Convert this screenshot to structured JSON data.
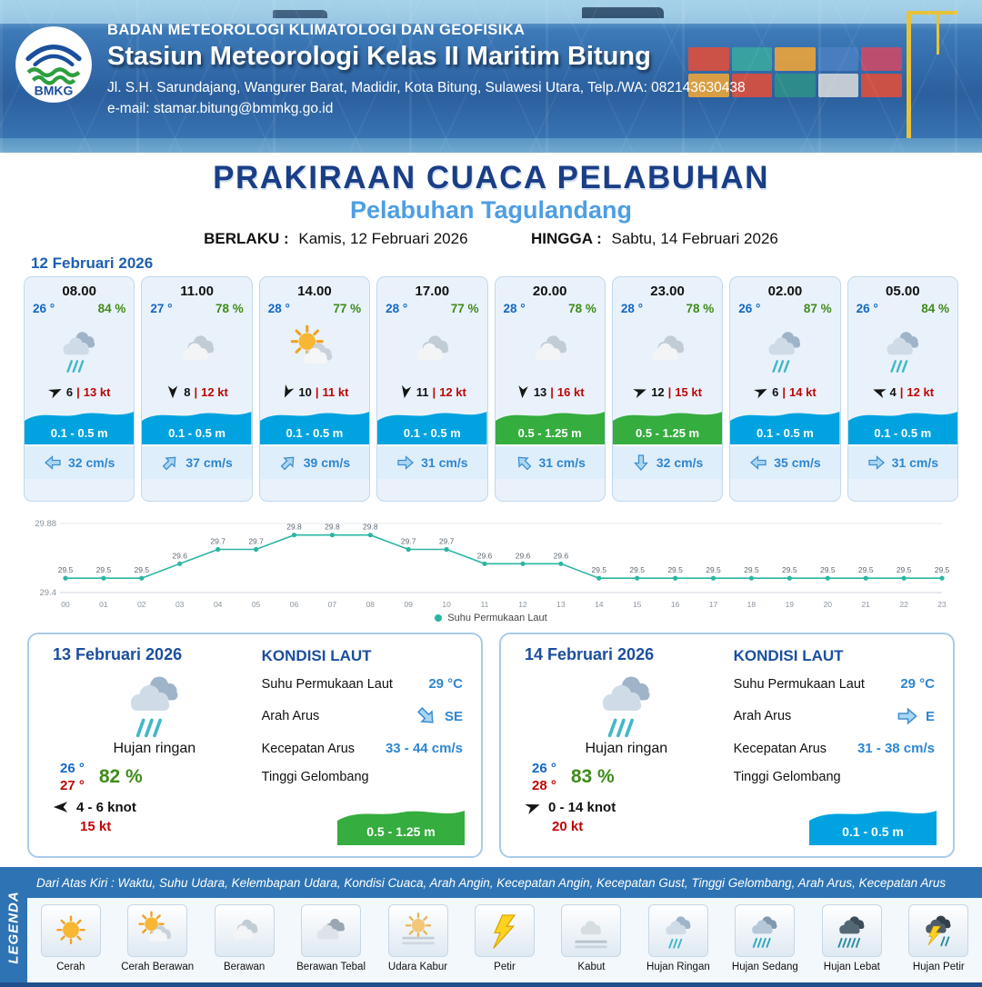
{
  "header": {
    "logo_text": "BMKG",
    "org": "BADAN METEOROLOGI KLIMATOLOGI DAN GEOFISIKA",
    "station": "Stasiun Meteorologi Kelas II Maritim Bitung",
    "address": "Jl. S.H. Sarundajang, Wangurer Barat, Madidir, Kota Bitung, Sulawesi Utara, Telp./WA: 082143630438",
    "email": "e-mail: stamar.bitung@bmmkg.go.id"
  },
  "title": {
    "main": "PRAKIRAAN CUACA PELABUHAN",
    "sub": "Pelabuhan Tagulandang",
    "berlaku_label": "BERLAKU :",
    "berlaku_value": "Kamis, 12 Februari 2026",
    "hingga_label": "HINGGA :",
    "hingga_value": "Sabtu, 14 Februari 2026"
  },
  "forecast_date": "12 Februari 2026",
  "hourly": [
    {
      "time": "08.00",
      "temp": "26 °",
      "humidity": "84 %",
      "weather": "hujan-ringan",
      "wind_deg": -25,
      "wind_speed": "6",
      "gust": "13 kt",
      "wave": "0.1 - 0.5 m",
      "wave_color": "#00a3e0",
      "current_deg": 180,
      "current": "32 cm/s"
    },
    {
      "time": "11.00",
      "temp": "27 °",
      "humidity": "78 %",
      "weather": "berawan",
      "wind_deg": 90,
      "wind_speed": "8",
      "gust": "12 kt",
      "wave": "0.1 - 0.5 m",
      "wave_color": "#00a3e0",
      "current_deg": -45,
      "current": "37 cm/s"
    },
    {
      "time": "14.00",
      "temp": "28 °",
      "humidity": "77 %",
      "weather": "cerah-berawan",
      "wind_deg": 115,
      "wind_speed": "10",
      "gust": "11 kt",
      "wave": "0.1 - 0.5 m",
      "wave_color": "#00a3e0",
      "current_deg": -45,
      "current": "39 cm/s"
    },
    {
      "time": "17.00",
      "temp": "28 °",
      "humidity": "77 %",
      "weather": "berawan",
      "wind_deg": 100,
      "wind_speed": "11",
      "gust": "12 kt",
      "wave": "0.1 - 0.5 m",
      "wave_color": "#00a3e0",
      "current_deg": 0,
      "current": "31 cm/s"
    },
    {
      "time": "20.00",
      "temp": "28 °",
      "humidity": "78 %",
      "weather": "berawan",
      "wind_deg": 95,
      "wind_speed": "13",
      "gust": "16 kt",
      "wave": "0.5 - 1.25 m",
      "wave_color": "#35ad3f",
      "current_deg": -135,
      "current": "31 cm/s"
    },
    {
      "time": "23.00",
      "temp": "28 °",
      "humidity": "78 %",
      "weather": "berawan",
      "wind_deg": -20,
      "wind_speed": "12",
      "gust": "15 kt",
      "wave": "0.5 - 1.25 m",
      "wave_color": "#35ad3f",
      "current_deg": 90,
      "current": "32 cm/s"
    },
    {
      "time": "02.00",
      "temp": "26 °",
      "humidity": "87 %",
      "weather": "hujan-ringan",
      "wind_deg": -25,
      "wind_speed": "6",
      "gust": "14 kt",
      "wave": "0.1 - 0.5 m",
      "wave_color": "#00a3e0",
      "current_deg": 180,
      "current": "35 cm/s"
    },
    {
      "time": "05.00",
      "temp": "26 °",
      "humidity": "84 %",
      "weather": "hujan-ringan",
      "wind_deg": 200,
      "wind_speed": "4",
      "gust": "12 kt",
      "wave": "0.1 - 0.5 m",
      "wave_color": "#00a3e0",
      "current_deg": 0,
      "current": "31 cm/s"
    }
  ],
  "chart_data": {
    "type": "line",
    "series_name": "Suhu Permukaan Laut",
    "x": [
      "00",
      "01",
      "02",
      "03",
      "04",
      "05",
      "06",
      "07",
      "08",
      "09",
      "10",
      "11",
      "12",
      "13",
      "14",
      "15",
      "16",
      "17",
      "18",
      "19",
      "20",
      "21",
      "22",
      "23"
    ],
    "values": [
      29.5,
      29.5,
      29.5,
      29.6,
      29.7,
      29.7,
      29.8,
      29.8,
      29.8,
      29.7,
      29.7,
      29.6,
      29.6,
      29.6,
      29.5,
      29.5,
      29.5,
      29.5,
      29.5,
      29.5,
      29.5,
      29.5,
      29.5,
      29.5
    ],
    "ylim": [
      29.4,
      29.88
    ],
    "y_tick_labels": [
      "29.88",
      "29.4"
    ],
    "line_color": "#2bb5a3",
    "grid": true,
    "legend_position": "bottom"
  },
  "daily": [
    {
      "date": "13 Februari 2026",
      "weather": "hujan-ringan",
      "condition": "Hujan ringan",
      "temp_min": "26 °",
      "temp_max": "27 °",
      "humidity": "82 %",
      "wind_deg": 180,
      "wind_range": "4 - 6 knot",
      "gust": "15 kt",
      "sea": {
        "title": "KONDISI LAUT",
        "sst_label": "Suhu Permukaan Laut",
        "sst": "29 °C",
        "dir_label": "Arah Arus",
        "dir": "SE",
        "dir_deg": 45,
        "speed_label": "Kecepatan Arus",
        "speed": "33 - 44 cm/s",
        "wave_label": "Tinggi Gelombang",
        "wave": "0.5 - 1.25 m",
        "wave_color": "#35ad3f"
      }
    },
    {
      "date": "14 Februari 2026",
      "weather": "hujan-ringan",
      "condition": "Hujan ringan",
      "temp_min": "26 °",
      "temp_max": "28 °",
      "humidity": "83 %",
      "wind_deg": -20,
      "wind_range": "0 - 14 knot",
      "gust": "20 kt",
      "sea": {
        "title": "KONDISI LAUT",
        "sst_label": "Suhu Permukaan Laut",
        "sst": "29 °C",
        "dir_label": "Arah Arus",
        "dir": "E",
        "dir_deg": 0,
        "speed_label": "Kecepatan Arus",
        "speed": "31 - 38 cm/s",
        "wave_label": "Tinggi Gelombang",
        "wave": "0.1 - 0.5 m",
        "wave_color": "#00a3e0"
      }
    }
  ],
  "legend": {
    "side_label": "LEGENDA",
    "note": "Dari Atas Kiri : Waktu, Suhu Udara, Kelembapan Udara, Kondisi Cuaca, Arah Angin, Kecepatan Angin, Kecepatan Gust, Tinggi Gelombang, Arah Arus, Kecepatan Arus",
    "items": [
      {
        "label": "Cerah",
        "icon": "cerah"
      },
      {
        "label": "Cerah Berawan",
        "icon": "cerah-berawan"
      },
      {
        "label": "Berawan",
        "icon": "berawan"
      },
      {
        "label": "Berawan Tebal",
        "icon": "berawan-tebal"
      },
      {
        "label": "Udara Kabur",
        "icon": "udara-kabur"
      },
      {
        "label": "Petir",
        "icon": "petir"
      },
      {
        "label": "Kabut",
        "icon": "kabut"
      },
      {
        "label": "Hujan Ringan",
        "icon": "hujan-ringan"
      },
      {
        "label": "Hujan Sedang",
        "icon": "hujan-sedang"
      },
      {
        "label": "Hujan Lebat",
        "icon": "hujan-lebat"
      },
      {
        "label": "Hujan Petir",
        "icon": "hujan-petir"
      }
    ]
  },
  "colors": {
    "accent": "#1b4f9e",
    "temp": "#1368c4",
    "humidity": "#3f8c1a",
    "gust": "#c00505",
    "wave_blue": "#00a3e0",
    "wave_green": "#35ad3f",
    "chart_line": "#2bb5a3"
  }
}
